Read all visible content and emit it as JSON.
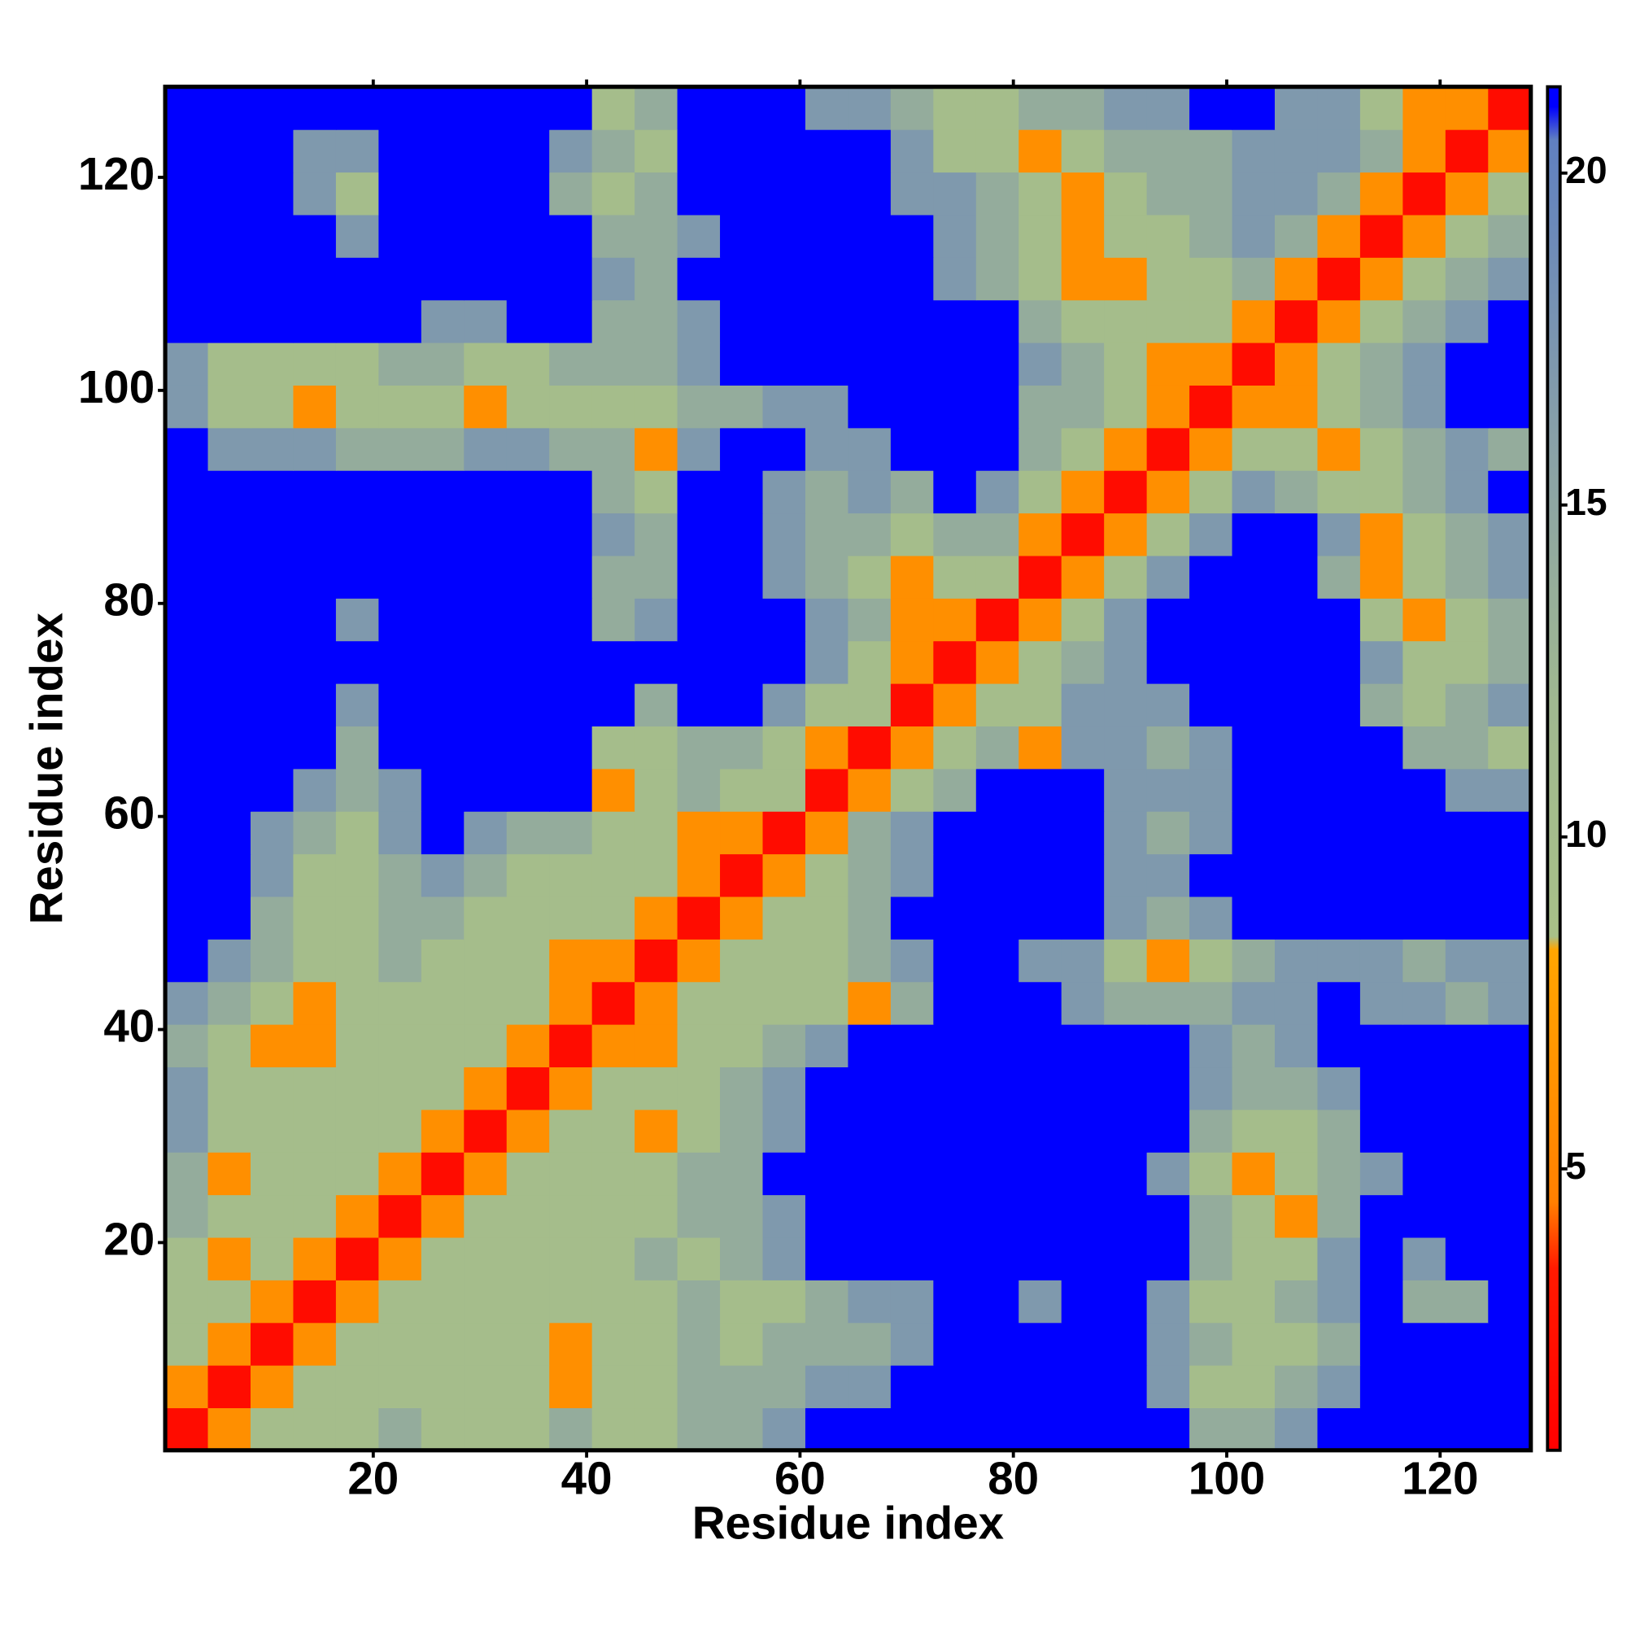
{
  "chart_data": {
    "type": "heatmap",
    "xlabel": "Residue index",
    "ylabel": "Residue index",
    "xbins": [
      0.5,
      4.5,
      8.5,
      12.5,
      16.5,
      20.5,
      24.5,
      28.5,
      32.5,
      36.5,
      40.5,
      44.5,
      48.5,
      52.5,
      56.5,
      60.5,
      64.5,
      68.5,
      72.5,
      76.5,
      80.5,
      84.5,
      88.5,
      92.5,
      96.5,
      100.5,
      104.5,
      108.5,
      112.5,
      116.5,
      120.5,
      124.5,
      128.5
    ],
    "ybins": [
      0.5,
      4.5,
      8.5,
      12.5,
      16.5,
      20.5,
      24.5,
      28.5,
      32.5,
      36.5,
      40.5,
      44.5,
      48.5,
      52.5,
      56.5,
      60.5,
      64.5,
      68.5,
      72.5,
      76.5,
      80.5,
      84.5,
      88.5,
      92.5,
      96.5,
      100.5,
      104.5,
      108.5,
      112.5,
      116.5,
      120.5,
      124.5,
      128.5
    ],
    "xlim": [
      0.5,
      128.5
    ],
    "ylim": [
      0.5,
      128.5
    ],
    "xticks": [
      20,
      40,
      60,
      80,
      100,
      120
    ],
    "yticks": [
      20,
      40,
      60,
      80,
      100,
      120
    ],
    "clim": [
      0.76,
      21.3
    ],
    "cticks": [
      5,
      10,
      15,
      20
    ],
    "colorscale": [
      [
        0.76,
        "#ff0000"
      ],
      [
        3.5,
        "#ff1a00"
      ],
      [
        4.5,
        "#ff8000"
      ],
      [
        8.3,
        "#ffa500"
      ],
      [
        8.5,
        "#a8c088"
      ],
      [
        12,
        "#a0b890"
      ],
      [
        16,
        "#88a0a8"
      ],
      [
        20.5,
        "#6080c0"
      ],
      [
        21,
        "#0000ff"
      ],
      [
        21.3,
        "#0000ff"
      ]
    ],
    "values": [
      [
        2,
        6,
        10,
        10,
        10,
        14,
        10,
        10,
        10,
        14,
        10,
        10,
        14,
        14,
        17,
        21,
        21,
        21,
        21,
        21,
        21,
        21,
        21,
        21,
        14,
        14,
        17,
        21,
        21,
        21,
        21,
        21
      ],
      [
        6,
        2,
        6,
        10,
        10,
        10,
        10,
        10,
        10,
        6,
        10,
        10,
        14,
        14,
        14,
        17,
        17,
        21,
        21,
        21,
        21,
        21,
        21,
        17,
        10,
        10,
        14,
        17,
        21,
        21,
        21,
        21
      ],
      [
        10,
        6,
        2,
        6,
        10,
        10,
        10,
        10,
        10,
        6,
        10,
        10,
        14,
        10,
        14,
        14,
        14,
        17,
        21,
        21,
        21,
        21,
        21,
        17,
        14,
        10,
        10,
        14,
        21,
        21,
        21,
        21
      ],
      [
        10,
        10,
        6,
        2,
        6,
        10,
        10,
        10,
        10,
        10,
        10,
        10,
        14,
        10,
        10,
        14,
        17,
        17,
        21,
        21,
        17,
        21,
        21,
        17,
        10,
        10,
        14,
        17,
        21,
        14,
        14,
        21
      ],
      [
        10,
        6,
        10,
        6,
        2,
        6,
        10,
        10,
        10,
        10,
        10,
        14,
        10,
        14,
        17,
        21,
        21,
        21,
        21,
        21,
        21,
        21,
        21,
        21,
        14,
        10,
        10,
        17,
        21,
        17,
        21,
        21
      ],
      [
        14,
        10,
        10,
        10,
        6,
        2,
        6,
        10,
        10,
        10,
        10,
        10,
        14,
        14,
        17,
        21,
        21,
        21,
        21,
        21,
        21,
        21,
        21,
        21,
        14,
        10,
        6,
        14,
        21,
        21,
        21,
        21
      ],
      [
        14,
        6,
        10,
        10,
        10,
        6,
        2,
        6,
        10,
        10,
        10,
        10,
        14,
        14,
        21,
        21,
        21,
        21,
        21,
        21,
        21,
        21,
        21,
        17,
        10,
        6,
        10,
        14,
        17,
        21,
        21,
        21
      ],
      [
        17,
        10,
        10,
        10,
        10,
        10,
        6,
        2,
        6,
        10,
        10,
        6,
        10,
        14,
        17,
        21,
        21,
        21,
        21,
        21,
        21,
        21,
        21,
        21,
        14,
        10,
        10,
        14,
        21,
        21,
        21,
        21
      ],
      [
        17,
        10,
        10,
        10,
        10,
        10,
        10,
        6,
        2,
        6,
        10,
        10,
        10,
        14,
        17,
        21,
        21,
        21,
        21,
        21,
        21,
        21,
        21,
        21,
        17,
        14,
        14,
        17,
        21,
        21,
        21,
        21
      ],
      [
        14,
        10,
        6,
        6,
        10,
        10,
        10,
        10,
        6,
        2,
        6,
        6,
        10,
        10,
        14,
        17,
        21,
        21,
        21,
        21,
        21,
        21,
        21,
        21,
        17,
        14,
        17,
        21,
        21,
        21,
        21,
        21
      ],
      [
        17,
        14,
        10,
        6,
        10,
        10,
        10,
        10,
        10,
        6,
        2,
        6,
        10,
        10,
        10,
        10,
        6,
        14,
        21,
        21,
        21,
        17,
        14,
        14,
        14,
        17,
        17,
        21,
        17,
        17,
        14,
        17
      ],
      [
        21,
        17,
        14,
        10,
        10,
        14,
        10,
        10,
        10,
        6,
        6,
        2,
        6,
        10,
        10,
        10,
        14,
        17,
        21,
        21,
        17,
        17,
        10,
        6,
        10,
        14,
        17,
        17,
        17,
        14,
        17,
        17
      ],
      [
        21,
        21,
        14,
        10,
        10,
        14,
        14,
        10,
        10,
        10,
        10,
        6,
        2,
        6,
        10,
        10,
        14,
        21,
        21,
        21,
        21,
        21,
        17,
        14,
        17,
        21,
        21,
        21,
        21,
        21,
        21,
        21
      ],
      [
        21,
        21,
        17,
        10,
        10,
        14,
        17,
        14,
        10,
        10,
        10,
        10,
        6,
        2,
        6,
        10,
        14,
        17,
        21,
        21,
        21,
        21,
        17,
        17,
        21,
        21,
        21,
        21,
        21,
        21,
        21,
        21
      ],
      [
        21,
        21,
        17,
        14,
        10,
        17,
        21,
        17,
        14,
        14,
        10,
        10,
        6,
        6,
        2,
        6,
        14,
        17,
        21,
        21,
        21,
        21,
        17,
        14,
        17,
        21,
        21,
        21,
        21,
        21,
        21,
        21
      ],
      [
        21,
        21,
        21,
        17,
        14,
        17,
        21,
        21,
        21,
        21,
        6,
        10,
        14,
        10,
        10,
        2,
        6,
        10,
        14,
        21,
        21,
        21,
        17,
        17,
        17,
        21,
        21,
        21,
        21,
        21,
        17,
        17
      ],
      [
        21,
        21,
        21,
        21,
        14,
        21,
        21,
        21,
        21,
        21,
        10,
        10,
        14,
        14,
        10,
        6,
        2,
        6,
        10,
        14,
        6,
        17,
        17,
        14,
        17,
        21,
        21,
        21,
        21,
        14,
        14,
        10
      ],
      [
        21,
        21,
        21,
        21,
        17,
        21,
        21,
        21,
        21,
        21,
        21,
        14,
        21,
        21,
        17,
        10,
        10,
        2,
        6,
        10,
        10,
        17,
        17,
        17,
        21,
        21,
        21,
        21,
        14,
        10,
        14,
        17
      ],
      [
        21,
        21,
        21,
        21,
        21,
        21,
        21,
        21,
        21,
        21,
        21,
        21,
        21,
        21,
        21,
        17,
        10,
        6,
        2,
        6,
        10,
        14,
        17,
        21,
        21,
        21,
        21,
        21,
        17,
        10,
        10,
        14
      ],
      [
        21,
        21,
        21,
        21,
        17,
        21,
        21,
        21,
        21,
        21,
        14,
        17,
        21,
        21,
        21,
        17,
        14,
        6,
        6,
        2,
        6,
        10,
        17,
        21,
        21,
        21,
        21,
        21,
        10,
        6,
        10,
        14
      ],
      [
        21,
        21,
        21,
        21,
        21,
        21,
        21,
        21,
        21,
        21,
        14,
        14,
        21,
        21,
        17,
        14,
        10,
        6,
        10,
        10,
        2,
        6,
        10,
        17,
        21,
        21,
        21,
        14,
        6,
        10,
        14,
        17
      ],
      [
        21,
        21,
        21,
        21,
        21,
        21,
        21,
        21,
        21,
        21,
        17,
        14,
        21,
        21,
        17,
        14,
        14,
        10,
        14,
        14,
        6,
        2,
        6,
        10,
        17,
        21,
        21,
        17,
        6,
        10,
        14,
        17
      ],
      [
        21,
        21,
        21,
        21,
        21,
        21,
        21,
        21,
        21,
        21,
        14,
        10,
        21,
        21,
        17,
        14,
        17,
        14,
        21,
        17,
        10,
        6,
        2,
        6,
        10,
        17,
        14,
        10,
        10,
        14,
        17,
        21
      ],
      [
        21,
        17,
        17,
        17,
        14,
        14,
        14,
        17,
        17,
        14,
        14,
        6,
        17,
        21,
        21,
        17,
        17,
        21,
        21,
        21,
        14,
        10,
        6,
        2,
        6,
        10,
        10,
        6,
        10,
        14,
        17,
        14
      ],
      [
        17,
        10,
        10,
        6,
        10,
        10,
        10,
        6,
        10,
        10,
        10,
        10,
        14,
        14,
        17,
        17,
        21,
        21,
        21,
        21,
        14,
        14,
        10,
        6,
        2,
        6,
        6,
        10,
        14,
        17,
        21,
        21
      ],
      [
        17,
        10,
        10,
        10,
        10,
        14,
        14,
        10,
        10,
        14,
        14,
        14,
        17,
        21,
        21,
        21,
        21,
        21,
        21,
        21,
        17,
        14,
        10,
        6,
        6,
        2,
        6,
        10,
        14,
        17,
        21,
        21
      ],
      [
        21,
        21,
        21,
        21,
        21,
        21,
        17,
        17,
        21,
        21,
        14,
        14,
        17,
        21,
        21,
        21,
        21,
        21,
        21,
        21,
        14,
        10,
        10,
        10,
        10,
        6,
        2,
        6,
        10,
        14,
        17,
        21
      ],
      [
        21,
        21,
        21,
        21,
        21,
        21,
        21,
        21,
        21,
        21,
        17,
        14,
        21,
        21,
        21,
        21,
        21,
        21,
        17,
        14,
        10,
        6,
        6,
        10,
        10,
        14,
        6,
        2,
        6,
        10,
        14,
        17
      ],
      [
        21,
        21,
        21,
        21,
        17,
        21,
        21,
        21,
        21,
        21,
        14,
        14,
        17,
        21,
        21,
        21,
        21,
        21,
        17,
        14,
        10,
        6,
        10,
        10,
        14,
        17,
        14,
        6,
        2,
        6,
        10,
        14
      ],
      [
        21,
        21,
        21,
        17,
        10,
        21,
        21,
        21,
        21,
        14,
        10,
        14,
        21,
        21,
        21,
        21,
        21,
        17,
        17,
        14,
        10,
        6,
        10,
        14,
        14,
        17,
        17,
        14,
        6,
        2,
        6,
        10
      ],
      [
        21,
        21,
        21,
        17,
        17,
        21,
        21,
        21,
        21,
        17,
        14,
        10,
        21,
        21,
        21,
        21,
        21,
        17,
        10,
        10,
        6,
        10,
        14,
        14,
        14,
        17,
        17,
        17,
        14,
        6,
        2,
        6
      ],
      [
        21,
        21,
        21,
        21,
        21,
        21,
        21,
        21,
        21,
        21,
        10,
        14,
        21,
        21,
        21,
        17,
        17,
        14,
        10,
        10,
        14,
        14,
        17,
        17,
        21,
        21,
        17,
        17,
        10,
        6,
        6,
        2
      ]
    ]
  }
}
